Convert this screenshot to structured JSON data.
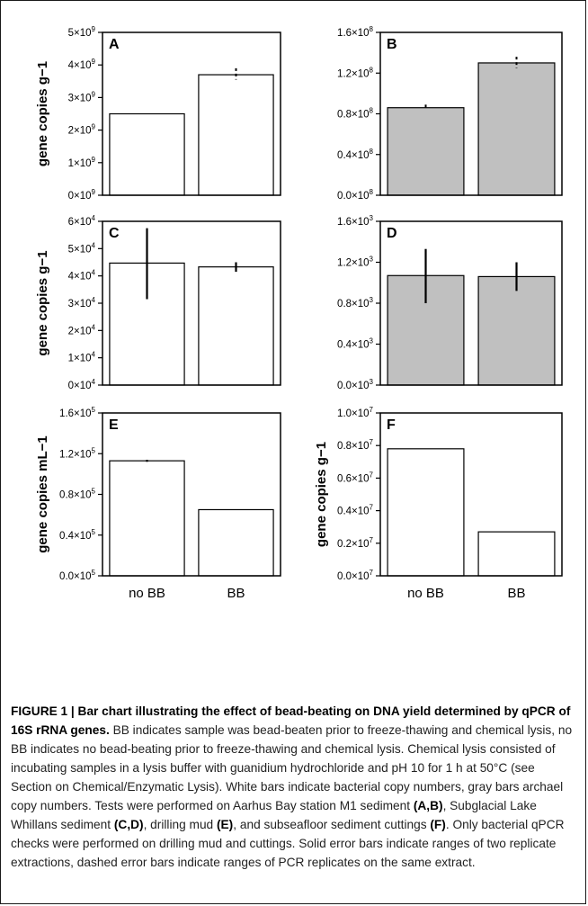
{
  "chart_data": [
    {
      "panel": "A",
      "type": "bar",
      "ylabel": "gene copies g−1",
      "categories": [
        "no BB",
        "BB"
      ],
      "values": [
        2500000000.0,
        3700000000.0
      ],
      "fill": "#ffffff",
      "ylim": [
        0,
        5000000000.0
      ],
      "mantissa_exp": 9,
      "ticks": [
        {
          "value": 0,
          "label": "0×10",
          "exp": "9"
        },
        {
          "value": 1000000000.0,
          "label": "1×10",
          "exp": "9"
        },
        {
          "value": 2000000000.0,
          "label": "2×10",
          "exp": "9"
        },
        {
          "value": 3000000000.0,
          "label": "3×10",
          "exp": "9"
        },
        {
          "value": 4000000000.0,
          "label": "4×10",
          "exp": "9"
        },
        {
          "value": 5000000000.0,
          "label": "5×10",
          "exp": "9"
        }
      ],
      "errors": [
        null,
        {
          "low": 3550000000.0,
          "high": 3900000000.0,
          "style": "dashed"
        }
      ],
      "show_xlabels": false
    },
    {
      "panel": "B",
      "type": "bar",
      "ylabel": "",
      "categories": [
        "no BB",
        "BB"
      ],
      "values": [
        86000000.0,
        130000000.0
      ],
      "fill": "#c0c0c0",
      "ylim": [
        0,
        160000000.0
      ],
      "ticks": [
        {
          "value": 0,
          "label": "0.0×10",
          "exp": "8"
        },
        {
          "value": 40000000.0,
          "label": "0.4×10",
          "exp": "8"
        },
        {
          "value": 80000000.0,
          "label": "0.8×10",
          "exp": "8"
        },
        {
          "value": 120000000.0,
          "label": "1.2×10",
          "exp": "8"
        },
        {
          "value": 160000000.0,
          "label": "1.6×10",
          "exp": "8"
        }
      ],
      "errors": [
        {
          "low": 85000000.0,
          "high": 89000000.0,
          "style": "dashed"
        },
        {
          "low": 125000000.0,
          "high": 136000000.0,
          "style": "dashed"
        }
      ],
      "show_xlabels": false
    },
    {
      "panel": "C",
      "type": "bar",
      "ylabel": "gene copies g−1",
      "categories": [
        "no BB",
        "BB"
      ],
      "values": [
        44700.0,
        43300.0
      ],
      "fill": "#ffffff",
      "ylim": [
        0,
        60000.0
      ],
      "ticks": [
        {
          "value": 0,
          "label": "0×10",
          "exp": "4"
        },
        {
          "value": 10000.0,
          "label": "1×10",
          "exp": "4"
        },
        {
          "value": 20000.0,
          "label": "2×10",
          "exp": "4"
        },
        {
          "value": 30000.0,
          "label": "3×10",
          "exp": "4"
        },
        {
          "value": 40000.0,
          "label": "4×10",
          "exp": "4"
        },
        {
          "value": 50000.0,
          "label": "5×10",
          "exp": "4"
        },
        {
          "value": 60000.0,
          "label": "6×10",
          "exp": "4"
        }
      ],
      "errors": [
        {
          "low": 31500.0,
          "high": 57500.0,
          "style": "solid"
        },
        {
          "low": 41500.0,
          "high": 45000.0,
          "style": "solid"
        }
      ],
      "show_xlabels": false
    },
    {
      "panel": "D",
      "type": "bar",
      "ylabel": "",
      "categories": [
        "no BB",
        "BB"
      ],
      "values": [
        1070.0,
        1060.0
      ],
      "fill": "#c0c0c0",
      "ylim": [
        0,
        1600.0
      ],
      "ticks": [
        {
          "value": 0,
          "label": "0.0×10",
          "exp": "3"
        },
        {
          "value": 400.0,
          "label": "0.4×10",
          "exp": "3"
        },
        {
          "value": 800.0,
          "label": "0.8×10",
          "exp": "3"
        },
        {
          "value": 1200.0,
          "label": "1.2×10",
          "exp": "3"
        },
        {
          "value": 1600.0,
          "label": "1.6×10",
          "exp": "3"
        }
      ],
      "errors": [
        {
          "low": 800.0,
          "high": 1330.0,
          "style": "solid"
        },
        {
          "low": 920.0,
          "high": 1200.0,
          "style": "solid"
        }
      ],
      "show_xlabels": false
    },
    {
      "panel": "E",
      "type": "bar",
      "ylabel": "gene copies mL−1",
      "categories": [
        "no BB",
        "BB"
      ],
      "values": [
        113000.0,
        65000.0
      ],
      "fill": "#ffffff",
      "ylim": [
        0,
        160000.0
      ],
      "ticks": [
        {
          "value": 0,
          "label": "0.0×10",
          "exp": "5"
        },
        {
          "value": 40000.0,
          "label": "0.4×10",
          "exp": "5"
        },
        {
          "value": 80000.0,
          "label": "0.8×10",
          "exp": "5"
        },
        {
          "value": 120000.0,
          "label": "1.2×10",
          "exp": "5"
        },
        {
          "value": 160000.0,
          "label": "1.6×10",
          "exp": "5"
        }
      ],
      "errors": [
        {
          "low": 112000.0,
          "high": 114000.0,
          "style": "solid"
        },
        null
      ],
      "show_xlabels": true
    },
    {
      "panel": "F",
      "type": "bar",
      "ylabel": "gene copies g−1",
      "categories": [
        "no BB",
        "BB"
      ],
      "values": [
        7800000.0,
        2700000.0
      ],
      "fill": "#ffffff",
      "ylim": [
        0,
        10000000.0
      ],
      "ticks": [
        {
          "value": 0,
          "label": "0.0×10",
          "exp": "7"
        },
        {
          "value": 2000000.0,
          "label": "0.2×10",
          "exp": "7"
        },
        {
          "value": 4000000.0,
          "label": "0.4×10",
          "exp": "7"
        },
        {
          "value": 6000000.0,
          "label": "0.6×10",
          "exp": "7"
        },
        {
          "value": 8000000.0,
          "label": "0.8×10",
          "exp": "7"
        },
        {
          "value": 10000000.0,
          "label": "1.0×10",
          "exp": "7"
        }
      ],
      "errors": [
        null,
        null
      ],
      "show_xlabels": true
    }
  ],
  "caption": {
    "title": "FIGURE 1 | Bar chart illustrating the effect of bead-beating on DNA yield determined by qPCR of 16S rRNA genes.",
    "body_1": " BB indicates sample was bead-beaten prior to freeze-thawing and chemical lysis, no BB indicates no bead-beating prior to freeze-thawing and chemical lysis. Chemical lysis consisted of incubating samples in a lysis buffer with guanidium hydrochloride and pH 10 for 1 h at 50°C (see Section on Chemical/Enzymatic Lysis). White bars indicate bacterial copy numbers, gray bars archael copy numbers. Tests were performed on Aarhus Bay station M1 sediment ",
    "ref_ab": "(A,B)",
    "body_2": ", Subglacial Lake Whillans sediment ",
    "ref_cd": "(C,D)",
    "body_3": ", drilling mud ",
    "ref_e": "(E)",
    "body_4": ", and subseafloor sediment cuttings ",
    "ref_f": "(F)",
    "body_5": ". Only bacterial qPCR checks were performed on drilling mud and cuttings. Solid error bars indicate ranges of two replicate extractions, dashed error bars indicate ranges of PCR replicates on the same extract."
  }
}
